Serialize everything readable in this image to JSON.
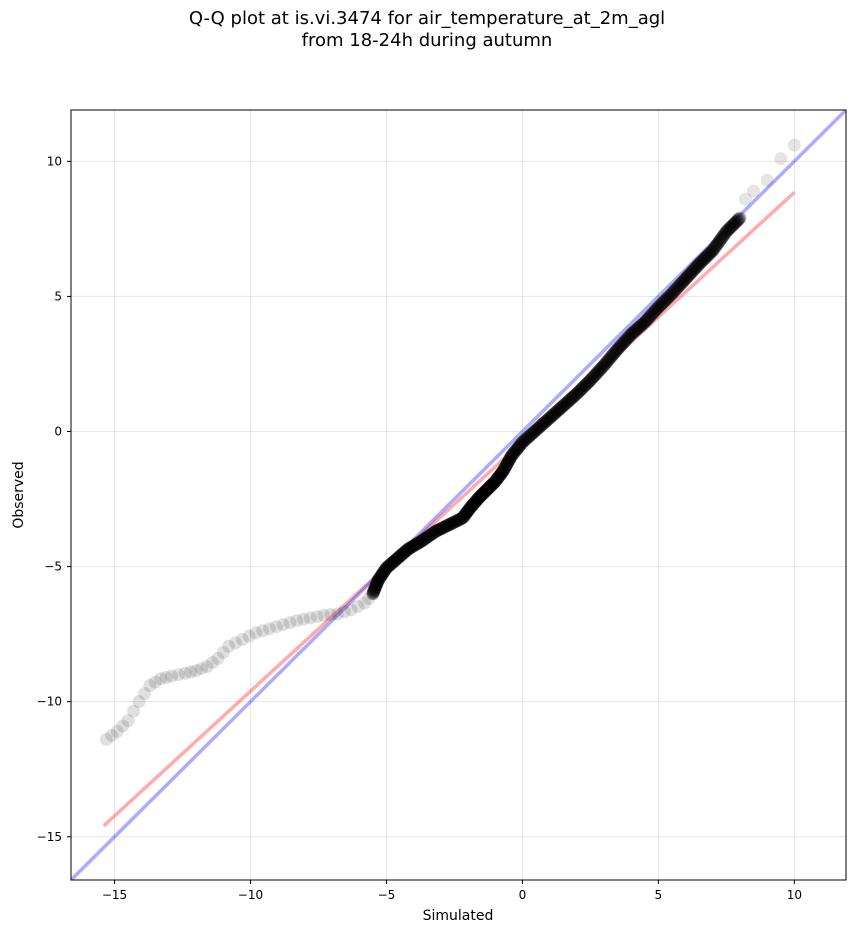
{
  "chart_data": {
    "type": "scatter",
    "title_line1": "Q-Q plot at is.vi.3474 for air_temperature_at_2m_agl",
    "title_line2": "from 18-24h during autumn",
    "xlabel": "Simulated",
    "ylabel": "Observed",
    "xlim": [
      -16.6,
      11.9
    ],
    "ylim": [
      -16.6,
      11.9
    ],
    "xticks": [
      -15,
      -10,
      -5,
      0,
      5,
      10
    ],
    "yticks": [
      -15,
      -10,
      -5,
      0,
      5,
      10
    ],
    "xtick_labels": [
      "−15",
      "−10",
      "−5",
      "0",
      "5",
      "10"
    ],
    "ytick_labels": [
      "−15",
      "−10",
      "−5",
      "0",
      "5",
      "10"
    ],
    "grid": true,
    "quantile_curve": [
      [
        -15.3,
        -11.4
      ],
      [
        -14.9,
        -11.1
      ],
      [
        -14.5,
        -10.7
      ],
      [
        -14.1,
        -10.0
      ],
      [
        -13.7,
        -9.4
      ],
      [
        -13.3,
        -9.15
      ],
      [
        -12.9,
        -9.05
      ],
      [
        -12.4,
        -8.95
      ],
      [
        -12.0,
        -8.85
      ],
      [
        -11.6,
        -8.7
      ],
      [
        -11.2,
        -8.4
      ],
      [
        -10.8,
        -7.95
      ],
      [
        -10.3,
        -7.7
      ],
      [
        -9.8,
        -7.45
      ],
      [
        -9.3,
        -7.3
      ],
      [
        -8.8,
        -7.15
      ],
      [
        -8.3,
        -7.0
      ],
      [
        -7.8,
        -6.9
      ],
      [
        -7.3,
        -6.8
      ],
      [
        -6.8,
        -6.75
      ],
      [
        -6.3,
        -6.6
      ],
      [
        -5.8,
        -6.35
      ],
      [
        -5.5,
        -6.0
      ],
      [
        -5.3,
        -5.5
      ],
      [
        -5.0,
        -5.05
      ],
      [
        -4.6,
        -4.7
      ],
      [
        -4.2,
        -4.35
      ],
      [
        -3.7,
        -4.05
      ],
      [
        -3.2,
        -3.7
      ],
      [
        -2.7,
        -3.45
      ],
      [
        -2.2,
        -3.2
      ],
      [
        -1.9,
        -2.8
      ],
      [
        -1.6,
        -2.45
      ],
      [
        -1.3,
        -2.15
      ],
      [
        -1.0,
        -1.85
      ],
      [
        -0.7,
        -1.45
      ],
      [
        -0.4,
        -0.9
      ],
      [
        0.0,
        -0.4
      ],
      [
        0.5,
        0.05
      ],
      [
        1.0,
        0.5
      ],
      [
        1.5,
        0.95
      ],
      [
        2.0,
        1.4
      ],
      [
        2.5,
        1.9
      ],
      [
        3.0,
        2.45
      ],
      [
        3.5,
        3.05
      ],
      [
        4.0,
        3.6
      ],
      [
        4.5,
        4.05
      ],
      [
        5.0,
        4.6
      ],
      [
        5.5,
        5.1
      ],
      [
        6.0,
        5.65
      ],
      [
        6.5,
        6.2
      ],
      [
        7.0,
        6.7
      ],
      [
        7.5,
        7.4
      ],
      [
        8.0,
        7.9
      ]
    ],
    "tail_points": [
      [
        8.2,
        8.6
      ],
      [
        8.5,
        8.9
      ],
      [
        9.0,
        9.3
      ],
      [
        9.5,
        10.1
      ],
      [
        10.0,
        10.6
      ]
    ],
    "series": [
      {
        "name": "",
        "color": "#ff0000",
        "opacity": 0.33,
        "points": [
          [
            -15.4,
            -14.6
          ],
          [
            10.0,
            8.85
          ]
        ]
      },
      {
        "name": "",
        "color": "#0000ff",
        "opacity": 0.33,
        "points": [
          [
            -16.6,
            -16.6
          ],
          [
            11.9,
            11.9
          ]
        ]
      }
    ],
    "marker_color": "#000000"
  }
}
